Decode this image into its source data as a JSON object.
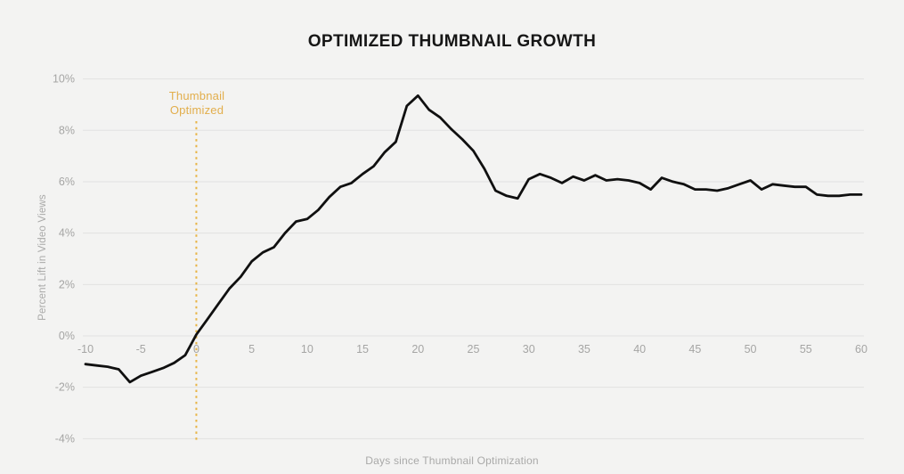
{
  "page": {
    "title": "OPTIMIZED THUMBNAIL GROWTH"
  },
  "colors": {
    "background": "#f3f3f2",
    "series_line": "#101010",
    "gridline": "#e2e2e1",
    "tick_label": "#a5a5a4",
    "axis_title": "#a9a9a8",
    "title_text": "#161616",
    "accent_gold": "#e8b445"
  },
  "chart_data": {
    "type": "line",
    "title": "OPTIMIZED THUMBNAIL GROWTH",
    "xlabel": "Days since Thumbnail Optimization",
    "ylabel": "Percent Lift in Video Views",
    "xlim": [
      -10,
      60
    ],
    "ylim": [
      -4.4,
      10.4
    ],
    "grid": "horizontal",
    "legend": "none",
    "x_ticks": [
      -10,
      -5,
      0,
      5,
      10,
      15,
      20,
      25,
      30,
      35,
      40,
      45,
      50,
      55,
      60
    ],
    "x_tick_labels": [
      "-10",
      "-5",
      "0",
      "5",
      "10",
      "15",
      "20",
      "25",
      "30",
      "35",
      "40",
      "45",
      "50",
      "55",
      "60"
    ],
    "y_ticks": [
      10,
      8,
      6,
      4,
      2,
      0,
      -2,
      -4
    ],
    "y_tick_labels": [
      "10%",
      "8%",
      "6%",
      "4%",
      "2%",
      "0%",
      "-2%",
      "-4%"
    ],
    "annotation": {
      "lines": [
        "Thumbnail",
        "Optimized"
      ],
      "x": 0,
      "marker": "dotted-vertical-line",
      "color": "#e8b445"
    },
    "series": [
      {
        "name": "Percent lift in video views",
        "color": "#101010",
        "x": [
          -10,
          -9,
          -8,
          -7,
          -6,
          -5,
          -4,
          -3,
          -2,
          -1,
          0,
          1,
          2,
          3,
          4,
          5,
          6,
          7,
          8,
          9,
          10,
          11,
          12,
          13,
          14,
          15,
          16,
          17,
          18,
          19,
          20,
          21,
          22,
          23,
          24,
          25,
          26,
          27,
          28,
          29,
          30,
          31,
          32,
          33,
          34,
          35,
          36,
          37,
          38,
          39,
          40,
          41,
          42,
          43,
          44,
          45,
          46,
          47,
          48,
          49,
          50,
          51,
          52,
          53,
          54,
          55,
          56,
          57,
          58,
          59,
          60
        ],
        "y": [
          -1.1,
          -1.15,
          -1.2,
          -1.3,
          -1.8,
          -1.55,
          -1.4,
          -1.25,
          -1.05,
          -0.75,
          0.05,
          0.65,
          1.25,
          1.85,
          2.3,
          2.9,
          3.25,
          3.45,
          4.0,
          4.45,
          4.55,
          4.9,
          5.4,
          5.8,
          5.95,
          6.3,
          6.6,
          7.15,
          7.55,
          8.95,
          9.35,
          8.8,
          8.5,
          8.05,
          7.65,
          7.2,
          6.5,
          5.65,
          5.45,
          5.35,
          6.1,
          6.3,
          6.15,
          5.95,
          6.2,
          6.05,
          6.25,
          6.05,
          6.1,
          6.05,
          5.95,
          5.7,
          6.15,
          6.0,
          5.9,
          5.7,
          5.7,
          5.65,
          5.75,
          5.9,
          6.05,
          5.7,
          5.9,
          5.85,
          5.8,
          5.8,
          5.5,
          5.45,
          5.45,
          5.5,
          5.5
        ]
      }
    ]
  }
}
